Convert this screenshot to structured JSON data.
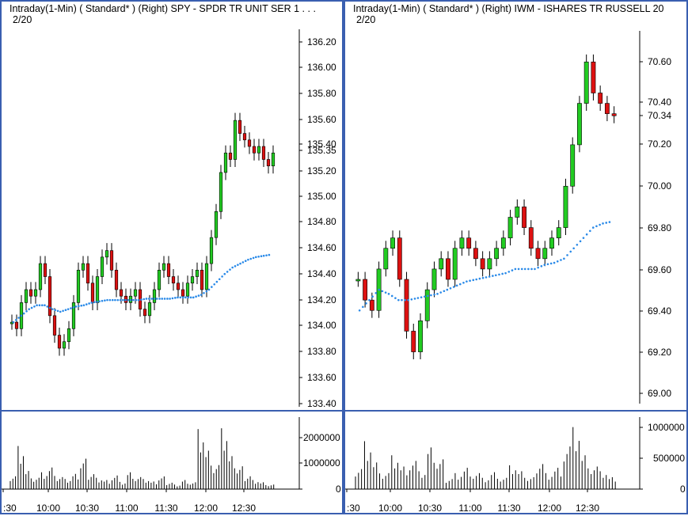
{
  "panels": [
    {
      "title": "Intraday(1-Min) ( Standard* )   (Right)   SPY - SPDR TR UNIT SER 1   . . .",
      "date": "2/20",
      "price_ticks": [
        "136.20",
        "136.00",
        "135.80",
        "135.60",
        "135.40",
        "135.35",
        "135.20",
        "135.00",
        "134.80",
        "134.60",
        "134.40",
        "134.20",
        "134.00",
        "133.80",
        "133.60",
        "133.40"
      ],
      "volume_ticks": [
        "2000000",
        "1000000",
        "0"
      ],
      "time_ticks": [
        ":30",
        "10:00",
        "10:30",
        "11:00",
        "11:30",
        "12:00",
        "12:30"
      ]
    },
    {
      "title": "Intraday(1-Min) ( Standard* )   (Right)   IWM - ISHARES TR RUSSELL 20",
      "date": "2/20",
      "price_ticks": [
        "70.60",
        "70.40",
        "70.34",
        "70.20",
        "70.00",
        "69.80",
        "69.60",
        "69.40",
        "69.20",
        "69.00"
      ],
      "volume_ticks": [
        "1000000",
        "500000",
        "0"
      ],
      "time_ticks": [
        ":30",
        "10:00",
        "10:30",
        "11:00",
        "11:30",
        "12:00",
        "12:30"
      ]
    }
  ],
  "chart_data": [
    {
      "type": "candlestick",
      "symbol": "SPY",
      "ylim": [
        133.4,
        136.3
      ],
      "last_price": 135.35,
      "series": [
        {
          "name": "price",
          "values": [
            134.05,
            134.0,
            134.2,
            134.3,
            134.25,
            134.3,
            134.5,
            134.4,
            134.1,
            133.95,
            133.85,
            133.9,
            134.0,
            134.2,
            134.45,
            134.5,
            134.35,
            134.2,
            134.4,
            134.55,
            134.6,
            134.45,
            134.3,
            134.25,
            134.2,
            134.25,
            134.3,
            134.15,
            134.1,
            134.2,
            134.3,
            134.45,
            134.5,
            134.4,
            134.35,
            134.3,
            134.25,
            134.35,
            134.4,
            134.45,
            134.3,
            134.5,
            134.7,
            134.9,
            135.2,
            135.35,
            135.3,
            135.6,
            135.5,
            135.45,
            135.4,
            135.35,
            135.4,
            135.3,
            135.25,
            135.35
          ]
        },
        {
          "name": "moving average",
          "values": [
            134.05,
            134.1,
            134.15,
            134.18,
            134.18,
            134.15,
            134.13,
            134.15,
            134.17,
            134.18,
            134.2,
            134.21,
            134.22,
            134.22,
            134.22,
            134.22,
            134.22,
            134.23,
            134.23,
            134.23,
            134.23,
            134.24,
            134.24,
            134.24,
            134.26,
            134.3,
            134.36,
            134.42,
            134.47,
            134.5,
            134.53,
            134.55,
            134.56,
            134.57
          ]
        }
      ],
      "volume": [
        600000,
        1900000,
        800000,
        500000,
        700000,
        900000,
        500000,
        400000,
        600000,
        1200000,
        700000,
        500000,
        400000,
        600000,
        300000,
        700000,
        500000,
        400000,
        300000,
        500000,
        300000,
        200000,
        400000,
        300000,
        2500000,
        1600000,
        1000000,
        2400000,
        1300000,
        900000,
        600000,
        400000,
        300000,
        200000
      ]
    },
    {
      "type": "candlestick",
      "symbol": "IWM",
      "ylim": [
        68.95,
        70.75
      ],
      "last_price": 70.34,
      "series": [
        {
          "name": "price",
          "values": [
            69.55,
            69.45,
            69.4,
            69.6,
            69.7,
            69.75,
            69.55,
            69.3,
            69.2,
            69.35,
            69.5,
            69.6,
            69.65,
            69.55,
            69.7,
            69.75,
            69.7,
            69.65,
            69.6,
            69.65,
            69.7,
            69.75,
            69.85,
            69.9,
            69.8,
            69.7,
            69.65,
            69.7,
            69.75,
            69.8,
            70.0,
            70.2,
            70.4,
            70.6,
            70.45,
            70.4,
            70.35,
            70.34
          ]
        },
        {
          "name": "moving average",
          "values": [
            69.4,
            69.45,
            69.5,
            69.48,
            69.45,
            69.45,
            69.46,
            69.47,
            69.48,
            69.5,
            69.52,
            69.54,
            69.55,
            69.56,
            69.57,
            69.58,
            69.6,
            69.6,
            69.6,
            69.62,
            69.63,
            69.65,
            69.7,
            69.75,
            69.8,
            69.82,
            69.83
          ]
        }
      ],
      "volume": [
        400000,
        900000,
        500000,
        300000,
        600000,
        400000,
        500000,
        300000,
        700000,
        500000,
        200000,
        300000,
        400000,
        300000,
        200000,
        300000,
        200000,
        400000,
        300000,
        200000,
        500000,
        300000,
        400000,
        800000,
        1100000,
        600000,
        400000,
        300000,
        200000
      ]
    }
  ]
}
